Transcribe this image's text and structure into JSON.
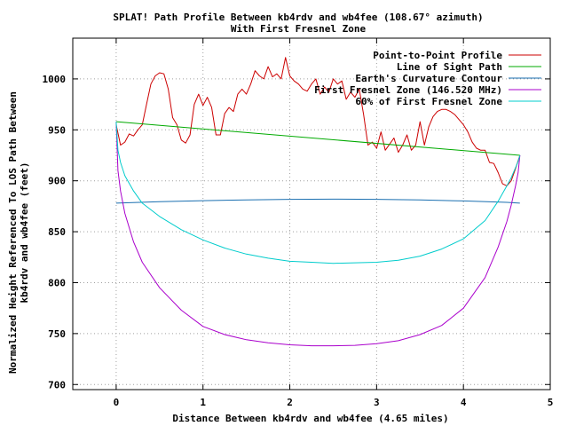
{
  "chart_data": {
    "type": "line",
    "title": "SPLAT! Path Profile Between kb4rdv and wb4fee (108.67° azimuth)",
    "subtitle": "With First Fresnel Zone",
    "xlabel": "Distance Between kb4rdv and wb4fee (4.65 miles)",
    "ylabel_line1": "Normalized Height Referenced To LOS Path Between",
    "ylabel_line2": "kb4rdv and wb4fee (feet)",
    "xlim": [
      -0.5,
      5
    ],
    "ylim": [
      695,
      1040
    ],
    "xticks": [
      0,
      1,
      2,
      3,
      4,
      5
    ],
    "xtick_labels": [
      "0",
      "1",
      "2",
      "3",
      "4",
      "5"
    ],
    "yticks": [
      700,
      750,
      800,
      850,
      900,
      950,
      1000
    ],
    "ytick_labels": [
      "700",
      "750",
      "800",
      "850",
      "900",
      "950",
      "1000"
    ],
    "grid": true,
    "legend_position": "top-right",
    "series": [
      {
        "name": "Point-to-Point Profile",
        "color": "#cc0000",
        "x": [
          0.0,
          0.05,
          0.1,
          0.15,
          0.2,
          0.25,
          0.3,
          0.35,
          0.4,
          0.45,
          0.5,
          0.55,
          0.6,
          0.65,
          0.7,
          0.75,
          0.8,
          0.85,
          0.9,
          0.95,
          1.0,
          1.05,
          1.1,
          1.15,
          1.2,
          1.25,
          1.3,
          1.35,
          1.4,
          1.45,
          1.5,
          1.55,
          1.6,
          1.65,
          1.7,
          1.75,
          1.8,
          1.85,
          1.9,
          1.95,
          2.0,
          2.05,
          2.1,
          2.15,
          2.2,
          2.25,
          2.3,
          2.35,
          2.4,
          2.45,
          2.5,
          2.55,
          2.6,
          2.65,
          2.7,
          2.75,
          2.8,
          2.85,
          2.9,
          2.95,
          3.0,
          3.05,
          3.1,
          3.15,
          3.2,
          3.25,
          3.3,
          3.35,
          3.4,
          3.45,
          3.5,
          3.55,
          3.6,
          3.65,
          3.7,
          3.75,
          3.8,
          3.85,
          3.9,
          3.95,
          4.0,
          4.05,
          4.1,
          4.15,
          4.2,
          4.25,
          4.3,
          4.35,
          4.4,
          4.45,
          4.5,
          4.55,
          4.6,
          4.65
        ],
        "y": [
          955,
          935,
          938,
          946,
          944,
          950,
          955,
          975,
          995,
          1003,
          1006,
          1005,
          990,
          962,
          955,
          940,
          937,
          945,
          975,
          985,
          974,
          982,
          972,
          945,
          945,
          966,
          972,
          968,
          985,
          990,
          985,
          995,
          1008,
          1003,
          1000,
          1012,
          1002,
          1005,
          1000,
          1021,
          1003,
          998,
          995,
          990,
          988,
          995,
          1000,
          985,
          992,
          987,
          1000,
          995,
          998,
          980,
          987,
          982,
          990,
          965,
          935,
          938,
          932,
          948,
          930,
          936,
          942,
          928,
          935,
          945,
          930,
          935,
          958,
          935,
          953,
          963,
          968,
          970,
          970,
          968,
          965,
          960,
          955,
          948,
          938,
          932,
          930,
          930,
          918,
          917,
          908,
          897,
          895,
          900,
          912,
          925
        ]
      },
      {
        "name": "Line of Sight Path",
        "color": "#00aa00",
        "x": [
          0.0,
          4.65
        ],
        "y": [
          958,
          925
        ]
      },
      {
        "name": "Earth's Curvature Contour",
        "color": "#1a6fb0",
        "x": [
          0.0,
          0.5,
          1.0,
          1.5,
          2.0,
          2.5,
          3.0,
          3.5,
          4.0,
          4.5,
          4.65
        ],
        "y": [
          878,
          879.4,
          880.5,
          881.3,
          881.8,
          882.0,
          881.8,
          881.2,
          880.2,
          878.8,
          878
        ]
      },
      {
        "name": "First Fresnel Zone (146.520 MHz)",
        "color": "#aa00cc",
        "x": [
          0.0,
          0.02,
          0.05,
          0.1,
          0.2,
          0.3,
          0.5,
          0.75,
          1.0,
          1.25,
          1.5,
          1.75,
          2.0,
          2.25,
          2.5,
          2.75,
          3.0,
          3.25,
          3.5,
          3.75,
          4.0,
          4.25,
          4.4,
          4.5,
          4.55,
          4.6,
          4.63,
          4.65
        ],
        "y": [
          958,
          910,
          890,
          868,
          840,
          820,
          795,
          773,
          757,
          749,
          744,
          741,
          739,
          738,
          738,
          738.5,
          740,
          743,
          749,
          758,
          775,
          805,
          835,
          860,
          876,
          895,
          908,
          925
        ]
      },
      {
        "name": "60% of First Fresnel Zone",
        "color": "#00cccc",
        "x": [
          0.0,
          0.02,
          0.05,
          0.1,
          0.2,
          0.3,
          0.5,
          0.75,
          1.0,
          1.25,
          1.5,
          1.75,
          2.0,
          2.25,
          2.5,
          2.75,
          3.0,
          3.25,
          3.5,
          3.75,
          4.0,
          4.25,
          4.4,
          4.5,
          4.55,
          4.6,
          4.63,
          4.65
        ],
        "y": [
          958,
          930,
          918,
          905,
          890,
          878,
          865,
          852,
          842,
          834,
          828,
          824,
          821,
          820,
          819,
          819.5,
          820,
          822,
          826,
          833,
          843,
          861,
          880,
          895,
          903,
          913,
          919,
          925
        ]
      }
    ]
  }
}
